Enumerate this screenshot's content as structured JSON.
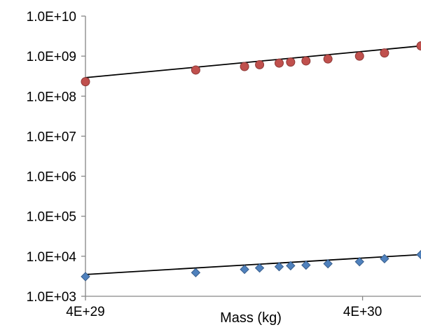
{
  "chart_data": {
    "type": "scatter",
    "title": "",
    "xlabel": "Mass (kg)",
    "ylabel": "",
    "xscale": "log",
    "yscale": "log",
    "xlim": [
      4e+29,
      6.5e+30
    ],
    "ylim": [
      1000,
      10000000000
    ],
    "grid": false,
    "legend": "none",
    "x_tick_values": [
      4e+29,
      4e+30
    ],
    "x_tick_labels": [
      "4E+29",
      "4E+30"
    ],
    "y_tick_values": [
      1000,
      10000,
      100000,
      1000000,
      10000000,
      100000000,
      1000000000,
      10000000000
    ],
    "y_tick_labels": [
      "1.0E+03",
      "1.0E+04",
      "1.0E+05",
      "1.0E+06",
      "1.0E+07",
      "1.0E+08",
      "1.0E+09",
      "1.0E+10"
    ],
    "colors": {
      "axis": "#868686",
      "upper_series": "#c0504d",
      "upper_series_edge": "#8c3836",
      "lower_series": "#4f81bd",
      "lower_series_edge": "#385d8a",
      "trendline": "#000000"
    },
    "series": [
      {
        "marker": "circle",
        "points": [
          {
            "x": 4e+29,
            "y": 230000000.0
          },
          {
            "x": 1e+30,
            "y": 450000000.0
          },
          {
            "x": 1.5e+30,
            "y": 550000000.0
          },
          {
            "x": 1.7e+30,
            "y": 610000000.0
          },
          {
            "x": 2e+30,
            "y": 670000000.0
          },
          {
            "x": 2.2e+30,
            "y": 710000000.0
          },
          {
            "x": 2.5e+30,
            "y": 760000000.0
          },
          {
            "x": 3e+30,
            "y": 850000000.0
          },
          {
            "x": 3.9e+30,
            "y": 1000000000.0
          },
          {
            "x": 4.8e+30,
            "y": 1200000000.0
          },
          {
            "x": 6.5e+30,
            "y": 1800000000.0
          }
        ],
        "trendline": {
          "type": "power",
          "start": [
            4e+29,
            290000000.0
          ],
          "end": [
            6.5e+30,
            1800000000.0
          ]
        }
      },
      {
        "marker": "diamond",
        "points": [
          {
            "x": 4e+29,
            "y": 3100
          },
          {
            "x": 1e+30,
            "y": 3900
          },
          {
            "x": 1.5e+30,
            "y": 4700
          },
          {
            "x": 1.7e+30,
            "y": 5100
          },
          {
            "x": 2e+30,
            "y": 5500
          },
          {
            "x": 2.2e+30,
            "y": 5800
          },
          {
            "x": 2.5e+30,
            "y": 6000
          },
          {
            "x": 3e+30,
            "y": 6500
          },
          {
            "x": 3.9e+30,
            "y": 7300
          },
          {
            "x": 4.8e+30,
            "y": 8700
          },
          {
            "x": 6.5e+30,
            "y": 11000
          }
        ],
        "trendline": {
          "type": "power",
          "start": [
            4e+29,
            3500
          ],
          "end": [
            6.5e+30,
            11000
          ]
        }
      }
    ]
  }
}
